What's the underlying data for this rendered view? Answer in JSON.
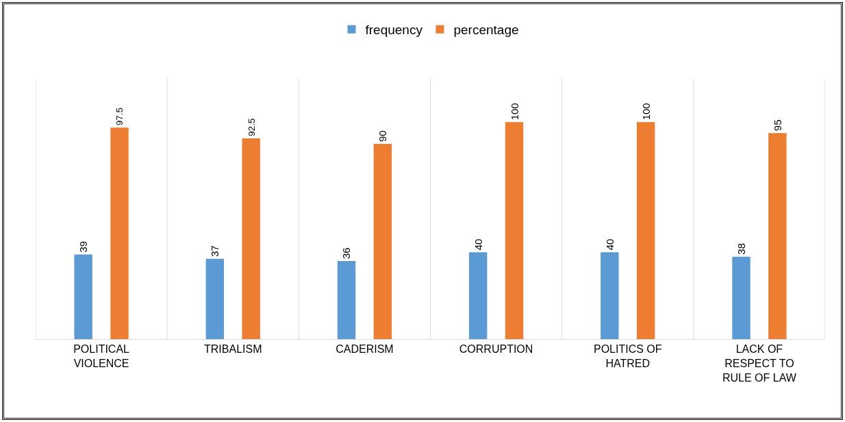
{
  "chart_data": {
    "type": "bar",
    "categories": [
      "POLITICAL VIOLENCE",
      "TRIBALISM",
      "CADERISM",
      "CORRUPTION",
      "POLITICS OF HATRED",
      "LACK OF RESPECT TO RULE OF LAW"
    ],
    "series": [
      {
        "name": "frequency",
        "color": "#5b9bd5",
        "values": [
          39,
          37,
          36,
          40,
          40,
          38
        ]
      },
      {
        "name": "percentage",
        "color": "#ed7d31",
        "values": [
          97.5,
          92.5,
          90,
          100,
          100,
          95
        ]
      }
    ],
    "ylim": [
      0,
      120
    ],
    "tick_labels": "x",
    "data_labels": true,
    "grid": "x",
    "legend": "top"
  }
}
